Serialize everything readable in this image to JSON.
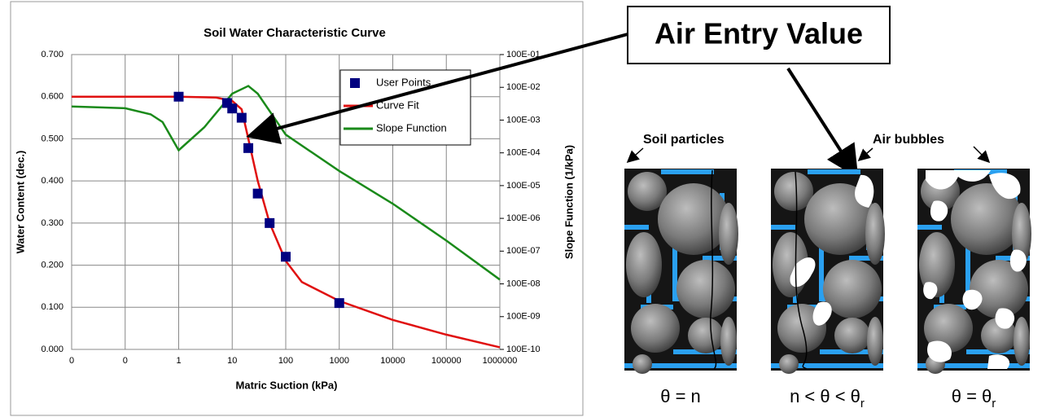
{
  "chart_data": {
    "type": "line",
    "title": "Soil Water Characteristic Curve",
    "x_label": "Matric Suction (kPa)",
    "y_label": "Water Content (dec.)",
    "y2_label": "Slope Function (1/kPa)",
    "x_log": true,
    "y2_log": true,
    "grid": true,
    "legend": "upper right",
    "xlim": [
      0.01,
      1000000
    ],
    "xticks": [
      {
        "value": 0.01,
        "label": "0"
      },
      {
        "value": 0.1,
        "label": "0"
      },
      1,
      10,
      100,
      1000,
      10000,
      100000,
      1000000
    ],
    "ylim": [
      0,
      0.7
    ],
    "yticks": [
      {
        "value": 0,
        "label": "0.000"
      },
      {
        "value": 0.1,
        "label": "0.100"
      },
      {
        "value": 0.2,
        "label": "0.200"
      },
      {
        "value": 0.3,
        "label": "0.300"
      },
      {
        "value": 0.4,
        "label": "0.400"
      },
      {
        "value": 0.5,
        "label": "0.500"
      },
      {
        "value": 0.6,
        "label": "0.600"
      },
      {
        "value": 0.7,
        "label": "0.700"
      }
    ],
    "y2lim": [
      1e-08,
      10
    ],
    "y2ticks": [
      {
        "value": 10,
        "label": "100E-01"
      },
      {
        "value": 1,
        "label": "100E-02"
      },
      {
        "value": 0.1,
        "label": "100E-03"
      },
      {
        "value": 0.01,
        "label": "100E-04"
      },
      {
        "value": 0.001,
        "label": "100E-05"
      },
      {
        "value": 0.0001,
        "label": "100E-06"
      },
      {
        "value": 1e-05,
        "label": "100E-07"
      },
      {
        "value": 1e-06,
        "label": "100E-08"
      },
      {
        "value": 1e-07,
        "label": "100E-09"
      },
      {
        "value": 1e-08,
        "label": "100E-10"
      }
    ],
    "series": [
      {
        "name": "User Points",
        "type": "scatter",
        "color": "#000080",
        "x": [
          1,
          8,
          10,
          15,
          20,
          30,
          50,
          100,
          1000
        ],
        "values": [
          0.6,
          0.585,
          0.572,
          0.55,
          0.478,
          0.37,
          0.3,
          0.22,
          0.11
        ]
      },
      {
        "name": "Curve Fit",
        "type": "line",
        "color": "#e01010",
        "x": [
          0.01,
          1,
          5,
          10,
          15,
          20,
          30,
          50,
          100,
          200,
          1000,
          10000,
          100000,
          1000000
        ],
        "values": [
          0.6,
          0.6,
          0.598,
          0.59,
          0.57,
          0.5,
          0.4,
          0.3,
          0.21,
          0.16,
          0.115,
          0.07,
          0.035,
          0.005
        ]
      },
      {
        "name": "Slope Function",
        "type": "line",
        "color": "#1a8a1a",
        "axis": "y2",
        "x": [
          0.01,
          0.1,
          0.3,
          0.5,
          1,
          3,
          10,
          20,
          30,
          100,
          1000,
          10000,
          100000,
          1000000
        ],
        "values": [
          0.26,
          0.23,
          0.15,
          0.087,
          0.012,
          0.06,
          0.64,
          1.1,
          0.64,
          0.036,
          0.0028,
          0.00028,
          2.1e-05,
          1.35e-06
        ]
      }
    ]
  },
  "diagram": {
    "callout": "Air Entry Value",
    "label_left": "Soil particles",
    "label_right": "Air bubbles",
    "panels": [
      {
        "main": "θ = n"
      },
      {
        "main": "n < θ < θ",
        "sub": "r"
      },
      {
        "main": "θ = θ",
        "sub": "r"
      }
    ]
  }
}
